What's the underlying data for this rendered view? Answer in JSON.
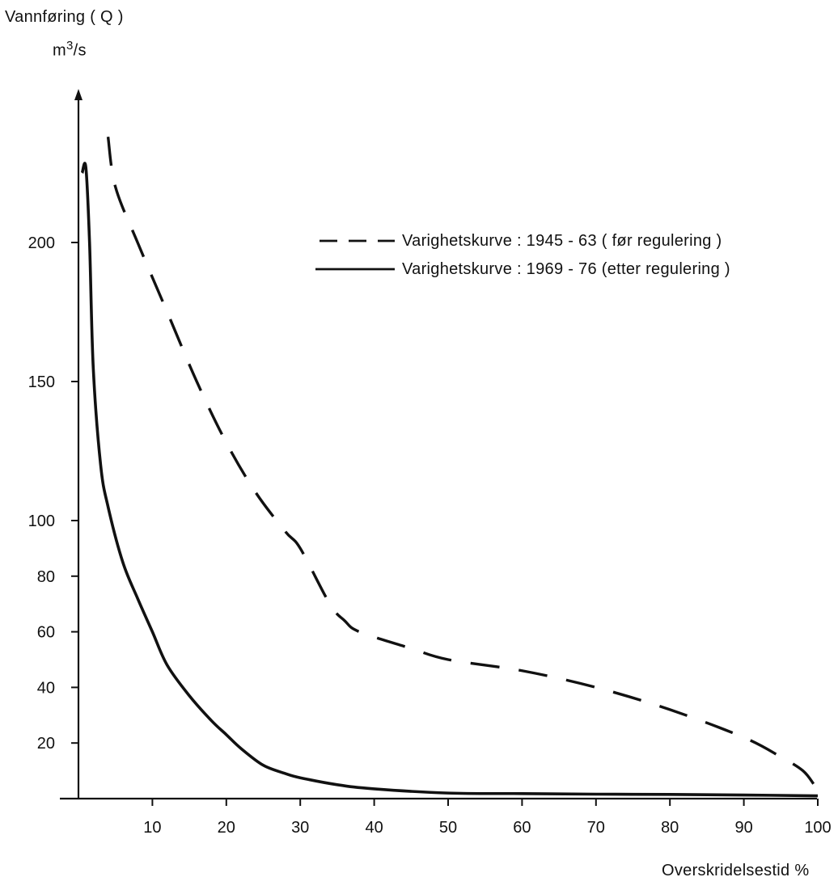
{
  "chart_data": {
    "type": "line",
    "title": "",
    "ylabel": "Vannføring ( Q )",
    "yunit_base": "m",
    "yunit_exp": "3",
    "yunit_tail": "/s",
    "xlabel": "Overskridelsestid %",
    "xlim": [
      0,
      100
    ],
    "x_ticks": [
      10,
      20,
      30,
      40,
      50,
      60,
      70,
      80,
      90,
      100
    ],
    "y_ticks": [
      20,
      40,
      60,
      80,
      100,
      150,
      200
    ],
    "y_scale": "piecewise: linear 0-100 (2x), linear 100-250",
    "grid": false,
    "legend_position": "top-right",
    "series": [
      {
        "name": "Varighetskurve : 1945 - 63   ( før regulering )",
        "style": "dashed",
        "x": [
          4,
          5,
          8,
          12,
          16,
          20,
          24,
          28,
          30,
          34,
          36,
          38,
          45,
          50,
          60,
          70,
          80,
          90,
          95,
          98,
          99.5
        ],
        "y": [
          238,
          220,
          200,
          175,
          150,
          128,
          110,
          96,
          90,
          70,
          64,
          60,
          54,
          50,
          46,
          40,
          32,
          22,
          15,
          10,
          5
        ]
      },
      {
        "name": "Varighetskurve : 1969 - 76   (etter regulering )",
        "style": "solid",
        "x": [
          0.5,
          1,
          1.5,
          2,
          3,
          4,
          6,
          8,
          10,
          12,
          15,
          18,
          20,
          22,
          25,
          28,
          30,
          35,
          40,
          50,
          60,
          70,
          80,
          90,
          100
        ],
        "y": [
          225,
          227,
          200,
          155,
          120,
          105,
          85,
          72,
          60,
          48,
          37,
          28,
          23,
          18,
          12,
          9,
          7.5,
          5,
          3.5,
          2,
          1.8,
          1.6,
          1.5,
          1.3,
          1
        ]
      }
    ]
  }
}
